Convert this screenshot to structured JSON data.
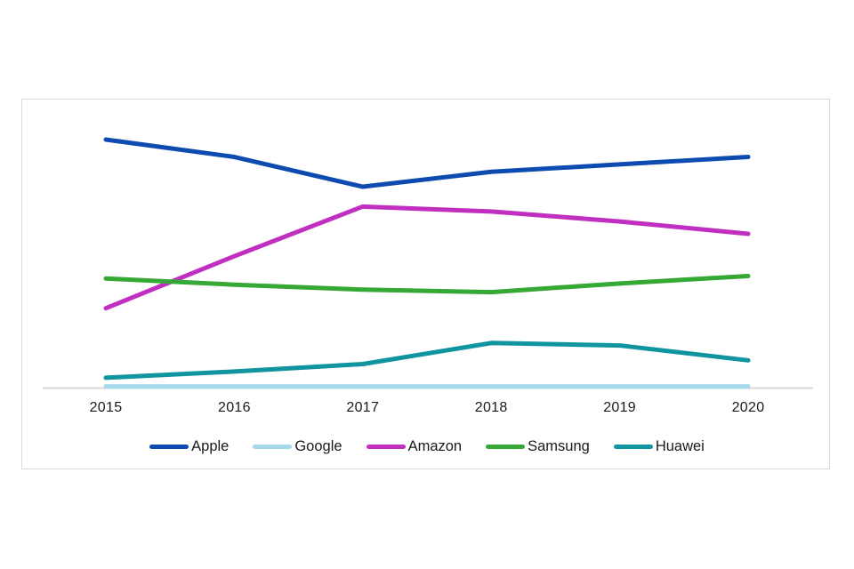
{
  "page": {
    "background_color": "#ffffff",
    "text_color": "#1a1a1a"
  },
  "card": {
    "background_color": "#ffffff",
    "border_color": "#d9d9d9"
  },
  "chart_data": {
    "type": "line",
    "title": "",
    "xlabel": "",
    "ylabel": "",
    "x_labels": [
      "2015",
      "2016",
      "2017",
      "2018",
      "2019",
      "2020"
    ],
    "series": [
      {
        "name": "Apple",
        "color": "#0d4bb0",
        "values": [
          100,
          93,
          81,
          87,
          90,
          93
        ]
      },
      {
        "name": "Google",
        "color": "#a5d9e9",
        "values": [
          0.5,
          0.5,
          0.5,
          0.5,
          0.5,
          0.5
        ]
      },
      {
        "name": "Amazon",
        "color": "#c02fc0",
        "values": [
          32,
          53,
          73,
          71,
          67,
          62
        ]
      },
      {
        "name": "Samsung",
        "color": "#35a835",
        "values": [
          44,
          41.5,
          39.5,
          38.5,
          42,
          45
        ]
      },
      {
        "name": "Huawei",
        "color": "#10949f",
        "values": [
          4,
          6.5,
          9.5,
          18,
          17,
          11
        ]
      }
    ],
    "ylim": [
      0,
      116
    ],
    "y_axis_visible": false,
    "grid": false,
    "x_axis_line_color": "#d9d9d9",
    "line_width": 5,
    "legend_position": "bottom"
  }
}
